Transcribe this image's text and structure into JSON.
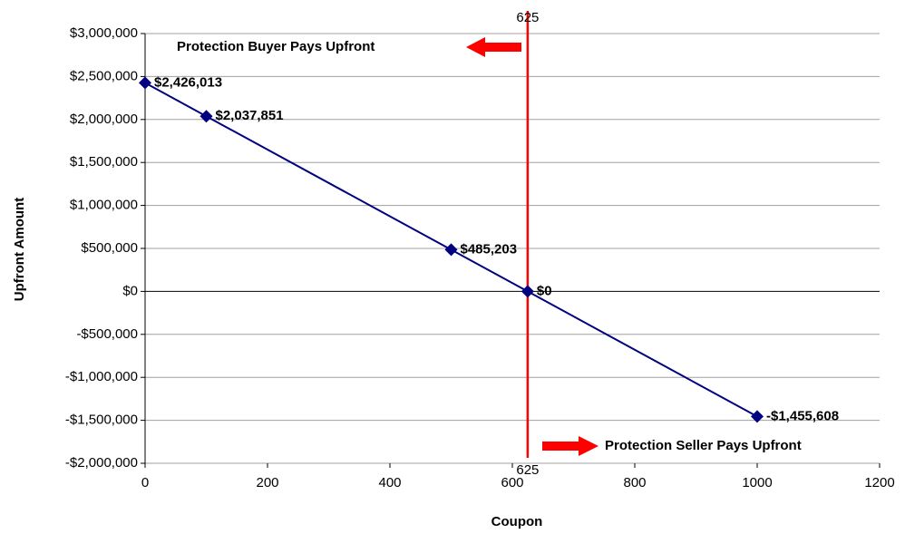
{
  "chart_data": {
    "type": "line",
    "x_label": "Coupon",
    "y_label": "Upfront Amount",
    "x": [
      0,
      100,
      500,
      625,
      1000
    ],
    "series": [
      {
        "color": "#000080",
        "values": [
          2426013,
          2037851,
          485203,
          0,
          -1455608
        ],
        "value_labels": [
          "$2,426,013",
          "$2,037,851",
          "$485,203",
          "$0",
          "-$1,455,608"
        ]
      }
    ],
    "xlim": [
      0,
      1200
    ],
    "xticks": [
      0,
      200,
      400,
      600,
      800,
      1000,
      1200
    ],
    "ylim": [
      -2000000,
      3000000
    ],
    "yticks": [
      {
        "value": -2000000,
        "label": "-$2,000,000"
      },
      {
        "value": -1500000,
        "label": "-$1,500,000"
      },
      {
        "value": -1000000,
        "label": "-$1,000,000"
      },
      {
        "value": -500000,
        "label": "-$500,000"
      },
      {
        "value": 0,
        "label": "$0"
      },
      {
        "value": 500000,
        "label": "$500,000"
      },
      {
        "value": 1000000,
        "label": "$1,000,000"
      },
      {
        "value": 1500000,
        "label": "$1,500,000"
      },
      {
        "value": 2000000,
        "label": "$2,000,000"
      },
      {
        "value": 2500000,
        "label": "$2,500,000"
      },
      {
        "value": 3000000,
        "label": "$3,000,000"
      }
    ],
    "grid": true,
    "ref_line": {
      "x": 625,
      "color": "#ff0000"
    },
    "annotations": [
      "Protection Buyer Pays Upfront",
      "Protection Seller Pays Upfront"
    ]
  }
}
